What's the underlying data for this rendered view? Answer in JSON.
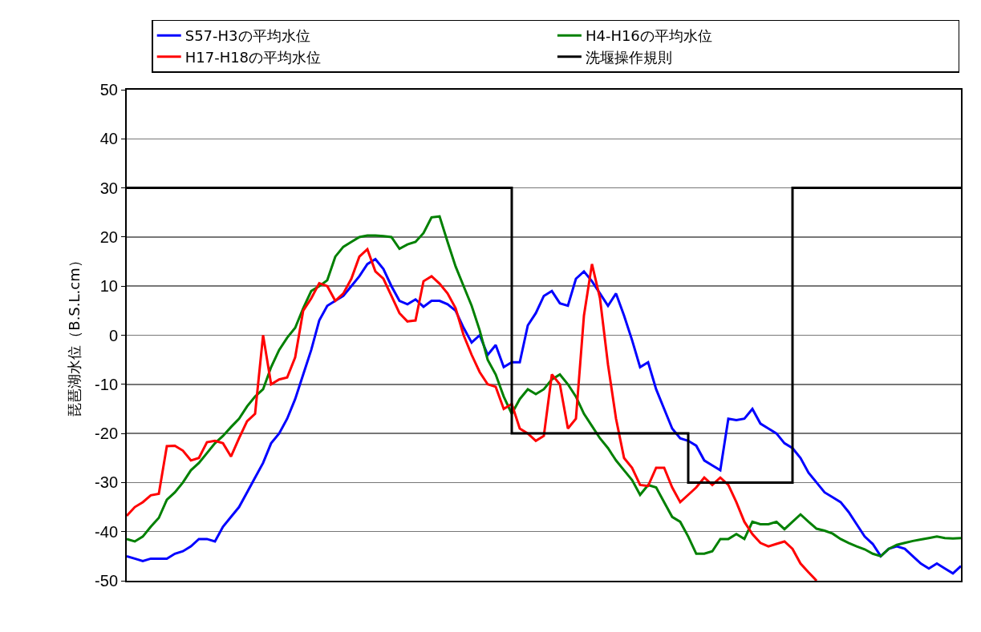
{
  "chart_data": {
    "type": "line",
    "ylabel": "琵琶湖水位（B.S.L.cm）",
    "categories": [
      null,
      null,
      null,
      null,
      null,
      null,
      null,
      null,
      null,
      null,
      null,
      null,
      null,
      null,
      null,
      null,
      null,
      null,
      null,
      null,
      null,
      null,
      null,
      null,
      null,
      null,
      null,
      null,
      null,
      null,
      null,
      null,
      null,
      null,
      null,
      null,
      null,
      null,
      null,
      null,
      null,
      null,
      null,
      null,
      null,
      null,
      null,
      null,
      null,
      null,
      null,
      null,
      null,
      null,
      null,
      null,
      null,
      null,
      null,
      null,
      null,
      null,
      null,
      null,
      null,
      null,
      null,
      null,
      null,
      null,
      null,
      null,
      null,
      null,
      null,
      null,
      null,
      null,
      null,
      null,
      null,
      null,
      null,
      null,
      null,
      null,
      null,
      null,
      null,
      null,
      null,
      null,
      null,
      null,
      null,
      null,
      null,
      null,
      null,
      null,
      null,
      null,
      null,
      null,
      null
    ],
    "series": [
      {
        "name": "S57-H3の平均水位",
        "color": "#0000ff",
        "values": [
          -45,
          -45.5,
          -46,
          -45.5,
          -45.5,
          -45.5,
          -44.5,
          -44,
          -43,
          -41.5,
          -41.5,
          -42,
          -39,
          -37,
          -35,
          -32,
          -29,
          -26,
          -22,
          -20,
          -17,
          -13,
          -8,
          -3,
          3,
          6,
          7,
          8,
          10,
          12,
          14.5,
          15.5,
          13.5,
          10,
          7,
          6.3,
          7.3,
          5.8,
          7,
          7,
          6.3,
          5,
          1.5,
          -1.5,
          0,
          -4,
          -2,
          -6.5,
          -5.5,
          -5.5,
          2,
          4.5,
          8,
          9,
          6.5,
          6,
          11.5,
          13,
          11,
          8.5,
          6,
          8.5,
          4,
          -1,
          -6.5,
          -5.5,
          -11,
          -15,
          -19,
          -21,
          -21.5,
          -22.5,
          -25.5,
          -26.5,
          -27.5,
          -17,
          -17.3,
          -17,
          -15,
          -18,
          -19,
          -20,
          -22,
          -23,
          -25,
          -28,
          -30,
          -32,
          -33,
          -34,
          -36,
          -38.5,
          -41,
          -42.5,
          -45,
          -43.5,
          -43,
          -43.5,
          -45,
          -46.5,
          -47.5,
          -46.5,
          -47.5,
          -48.5,
          -47
        ]
      },
      {
        "name": "H4-H16の平均水位",
        "color": "#008000",
        "values": [
          -41.5,
          -42,
          -41,
          -39,
          -37.2,
          -33.5,
          -32,
          -30,
          -27.5,
          -26,
          -24,
          -22,
          -20.5,
          -18.7,
          -17,
          -14.5,
          -12.5,
          -11,
          -6.5,
          -3,
          -0.5,
          1.5,
          5.5,
          9,
          10,
          11.2,
          16,
          18,
          19,
          20,
          20.3,
          20.3,
          20.2,
          20,
          17.6,
          18.5,
          19,
          20.8,
          24,
          24.2,
          19,
          14,
          10,
          6,
          1,
          -5,
          -8,
          -12.5,
          -16,
          -13,
          -11,
          -12,
          -11,
          -9,
          -8,
          -10,
          -12.5,
          -16,
          -18.5,
          -21,
          -23,
          -25.5,
          -27.5,
          -29.5,
          -32.5,
          -30.5,
          -31,
          -34,
          -37,
          -38,
          -41,
          -44.5,
          -44.5,
          -44,
          -41.5,
          -41.5,
          -40.5,
          -41.5,
          -38,
          -38.5,
          -38.5,
          -38,
          -39.5,
          -38,
          -36.5,
          -38,
          -39.4,
          -39.8,
          -40.4,
          -41.5,
          -42.3,
          -43,
          -43.6,
          -44.5,
          -45,
          -43.5,
          -42.7,
          -42.3,
          -41.9,
          -41.6,
          -41.3,
          -41,
          -41.3,
          -41.4,
          -41.3
        ]
      },
      {
        "name": "H17-H18の平均水位",
        "color": "#ff0000",
        "values": [
          -36.8,
          -35,
          -34,
          -32.6,
          -32.3,
          -22.6,
          -22.5,
          -23.5,
          -25.5,
          -25,
          -21.8,
          -21.5,
          -22,
          -24.7,
          -21,
          -17.5,
          -16,
          0,
          -10,
          -9,
          -8.6,
          -4.5,
          5,
          7.5,
          10.6,
          10,
          7,
          8.5,
          11.5,
          16,
          17.5,
          13,
          11.5,
          8,
          4.5,
          2.8,
          3,
          11,
          12,
          10.5,
          8.5,
          5.5,
          0,
          -4,
          -7.5,
          -10,
          -10.5,
          -15,
          -14,
          -19,
          -20,
          -21.5,
          -20.5,
          -8,
          -10,
          -19,
          -17,
          4,
          14.5,
          7.5,
          -6,
          -17,
          -25,
          -27,
          -30.5,
          -30.7,
          -27,
          -27,
          -31,
          -34,
          -32.5,
          -31,
          -29,
          -30.5,
          -29,
          -30.5,
          -34,
          -38,
          -40.5,
          -42.3,
          -43,
          -42.5,
          -42,
          -43.5,
          -46.5,
          -48.3,
          -50,
          null,
          null,
          null,
          null,
          null,
          null,
          null,
          null,
          null,
          null,
          null,
          null,
          null,
          null,
          null,
          null,
          null,
          null
        ]
      },
      {
        "name": "洗堰操作規則",
        "color": "#000000",
        "type": "step",
        "values": [
          30,
          30,
          30,
          30,
          30,
          30,
          30,
          30,
          30,
          30,
          30,
          30,
          30,
          30,
          30,
          30,
          30,
          30,
          30,
          30,
          30,
          30,
          30,
          30,
          30,
          30,
          30,
          30,
          30,
          30,
          30,
          30,
          30,
          30,
          30,
          30,
          30,
          30,
          30,
          30,
          30,
          30,
          30,
          30,
          30,
          30,
          30,
          30,
          -20,
          -20,
          -20,
          -20,
          -20,
          -20,
          -20,
          -20,
          -20,
          -20,
          -20,
          -20,
          -20,
          -20,
          -20,
          -20,
          -20,
          -20,
          -20,
          -20,
          -20,
          -20,
          -30,
          -30,
          -30,
          -30,
          -30,
          -30,
          -30,
          -30,
          -30,
          -30,
          -30,
          -30,
          -30,
          30,
          30,
          30,
          30,
          30,
          30,
          30,
          30,
          30,
          30,
          30,
          30,
          30,
          30,
          30,
          30,
          30,
          30,
          30,
          30,
          30,
          30
        ]
      }
    ],
    "ylim": [
      -50,
      50
    ],
    "yticks": [
      -50,
      -40,
      -30,
      -20,
      -10,
      0,
      10,
      20,
      30,
      40,
      50
    ],
    "grid": "y",
    "legend": "top",
    "marker": "none",
    "line_style": "solid"
  }
}
